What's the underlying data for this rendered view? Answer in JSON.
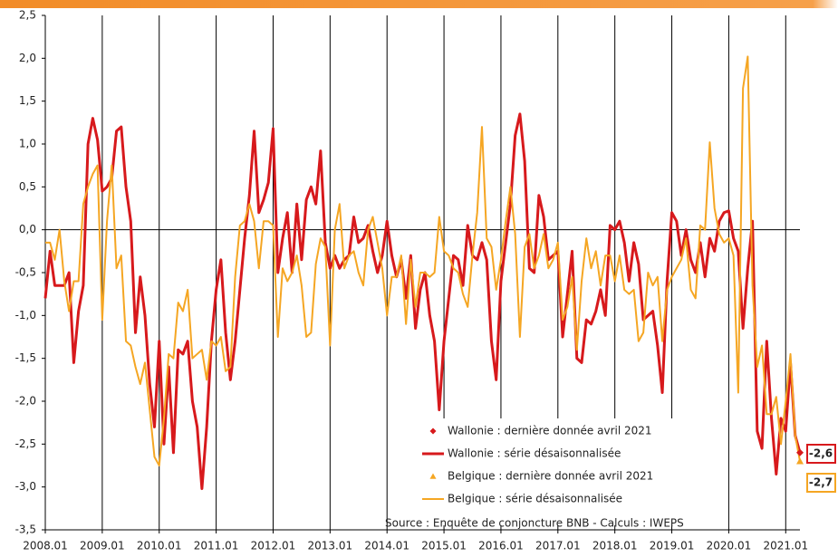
{
  "chart_data": {
    "type": "line",
    "source": "Source : Enquête de conjoncture BNB - Calculs : IWEPS",
    "categories": [
      "2008.01",
      null,
      null,
      null,
      null,
      null,
      null,
      null,
      null,
      null,
      null,
      null,
      "2009.01",
      null,
      null,
      null,
      null,
      null,
      null,
      null,
      null,
      null,
      null,
      null,
      "2010.01",
      null,
      null,
      null,
      null,
      null,
      null,
      null,
      null,
      null,
      null,
      null,
      "2011.01",
      null,
      null,
      null,
      null,
      null,
      null,
      null,
      null,
      null,
      null,
      null,
      "2012.01",
      null,
      null,
      null,
      null,
      null,
      null,
      null,
      null,
      null,
      null,
      null,
      "2013.01",
      null,
      null,
      null,
      null,
      null,
      null,
      null,
      null,
      null,
      null,
      null,
      "2014.01",
      null,
      null,
      null,
      null,
      null,
      null,
      null,
      null,
      null,
      null,
      null,
      "2015.01",
      null,
      null,
      null,
      null,
      null,
      null,
      null,
      null,
      null,
      null,
      null,
      "2016.01",
      null,
      null,
      null,
      null,
      null,
      null,
      null,
      null,
      null,
      null,
      null,
      "2017.01",
      null,
      null,
      null,
      null,
      null,
      null,
      null,
      null,
      null,
      null,
      null,
      "2018.01",
      null,
      null,
      null,
      null,
      null,
      null,
      null,
      null,
      null,
      null,
      null,
      "2019.01",
      null,
      null,
      null,
      null,
      null,
      null,
      null,
      null,
      null,
      null,
      null,
      "2020.01",
      null,
      null,
      null,
      null,
      null,
      null,
      null,
      null,
      null,
      null,
      null,
      "2021.01",
      null,
      null,
      null
    ],
    "series": [
      {
        "name": "Wallonie : dernière donnée avril 2021",
        "color": "#d7191c",
        "marker": "diamond",
        "values": [
          null,
          null,
          null,
          null,
          null,
          null,
          null,
          null,
          null,
          null,
          null,
          null,
          null,
          null,
          null,
          null,
          null,
          null,
          null,
          null,
          null,
          null,
          null,
          null,
          null,
          null,
          null,
          null,
          null,
          null,
          null,
          null,
          null,
          null,
          null,
          null,
          null,
          null,
          null,
          null,
          null,
          null,
          null,
          null,
          null,
          null,
          null,
          null,
          null,
          null,
          null,
          null,
          null,
          null,
          null,
          null,
          null,
          null,
          null,
          null,
          null,
          null,
          null,
          null,
          null,
          null,
          null,
          null,
          null,
          null,
          null,
          null,
          null,
          null,
          null,
          null,
          null,
          null,
          null,
          null,
          null,
          null,
          null,
          null,
          null,
          null,
          null,
          null,
          null,
          null,
          null,
          null,
          null,
          null,
          null,
          null,
          null,
          null,
          null,
          null,
          null,
          null,
          null,
          null,
          null,
          null,
          null,
          null,
          null,
          null,
          null,
          null,
          null,
          null,
          null,
          null,
          null,
          null,
          null,
          null,
          null,
          null,
          null,
          null,
          null,
          null,
          null,
          null,
          null,
          null,
          null,
          null,
          null,
          null,
          null,
          null,
          null,
          null,
          null,
          null,
          null,
          null,
          null,
          null,
          null,
          null,
          null,
          null,
          null,
          null,
          null,
          null,
          null,
          null,
          null,
          null,
          null,
          null,
          null,
          -2.6
        ],
        "value_labels": [
          null,
          null,
          null,
          null,
          null,
          null,
          null,
          null,
          null,
          null,
          null,
          null,
          null,
          null,
          null,
          null,
          null,
          null,
          null,
          null,
          null,
          null,
          null,
          null,
          null,
          null,
          null,
          null,
          null,
          null,
          null,
          null,
          null,
          null,
          null,
          null,
          null,
          null,
          null,
          null,
          null,
          null,
          null,
          null,
          null,
          null,
          null,
          null,
          null,
          null,
          null,
          null,
          null,
          null,
          null,
          null,
          null,
          null,
          null,
          null,
          null,
          null,
          null,
          null,
          null,
          null,
          null,
          null,
          null,
          null,
          null,
          null,
          null,
          null,
          null,
          null,
          null,
          null,
          null,
          null,
          null,
          null,
          null,
          null,
          null,
          null,
          null,
          null,
          null,
          null,
          null,
          null,
          null,
          null,
          null,
          null,
          null,
          null,
          null,
          null,
          null,
          null,
          null,
          null,
          null,
          null,
          null,
          null,
          null,
          null,
          null,
          null,
          null,
          null,
          null,
          null,
          null,
          null,
          null,
          null,
          null,
          null,
          null,
          null,
          null,
          null,
          null,
          null,
          null,
          null,
          null,
          null,
          null,
          null,
          null,
          null,
          null,
          null,
          null,
          null,
          null,
          null,
          null,
          null,
          null,
          null,
          null,
          null,
          null,
          null,
          null,
          null,
          null,
          null,
          null,
          null,
          null,
          null,
          null,
          "-2,6"
        ]
      },
      {
        "name": "Wallonie : série désaisonnalisée",
        "color": "#d7191c",
        "values": [
          -0.8,
          -0.25,
          -0.65,
          -0.65,
          -0.65,
          -0.5,
          -1.55,
          -0.95,
          -0.65,
          1.0,
          1.3,
          1.05,
          0.45,
          0.5,
          0.6,
          1.15,
          1.2,
          0.5,
          0.1,
          -1.2,
          -0.55,
          -1.0,
          -1.8,
          -2.3,
          -1.3,
          -2.5,
          -1.6,
          -2.6,
          -1.4,
          -1.45,
          -1.3,
          -2.0,
          -2.3,
          -3.02,
          -2.3,
          -1.3,
          -0.7,
          -0.35,
          -1.2,
          -1.75,
          -1.3,
          -0.7,
          -0.1,
          0.4,
          1.15,
          0.2,
          0.35,
          0.55,
          1.18,
          -0.5,
          -0.1,
          0.2,
          -0.5,
          0.3,
          -0.35,
          0.35,
          0.5,
          0.3,
          0.92,
          -0.15,
          -0.45,
          -0.3,
          -0.45,
          -0.35,
          -0.3,
          0.15,
          -0.15,
          -0.1,
          0.05,
          -0.25,
          -0.5,
          -0.3,
          0.1,
          -0.3,
          -0.55,
          -0.35,
          -0.8,
          -0.3,
          -1.15,
          -0.7,
          -0.5,
          -1.0,
          -1.3,
          -2.1,
          -1.3,
          -0.8,
          -0.3,
          -0.35,
          -0.65,
          0.05,
          -0.3,
          -0.35,
          -0.15,
          -0.35,
          -1.3,
          -1.75,
          -0.6,
          -0.15,
          0.3,
          1.1,
          1.35,
          0.8,
          -0.45,
          -0.5,
          0.4,
          0.15,
          -0.35,
          -0.3,
          -0.25,
          -1.25,
          -0.75,
          -0.25,
          -1.5,
          -1.55,
          -1.05,
          -1.1,
          -0.95,
          -0.7,
          -1.0,
          0.05,
          0.0,
          0.1,
          -0.15,
          -0.6,
          -0.15,
          -0.4,
          -1.05,
          -1.0,
          -0.95,
          -1.35,
          -1.9,
          -0.6,
          0.2,
          0.1,
          -0.3,
          0.0,
          -0.35,
          -0.5,
          -0.15,
          -0.55,
          -0.1,
          -0.25,
          0.1,
          0.2,
          0.22,
          -0.1,
          -0.25,
          -1.15,
          -0.45,
          0.1,
          -2.35,
          -2.55,
          -1.3,
          -2.2,
          -2.85,
          -2.2,
          -2.35,
          -1.55,
          -2.4,
          -2.6
        ]
      },
      {
        "name": "Belgique : dernière donnée avril 2021",
        "color": "#f5a623",
        "marker": "triangle",
        "values": [
          null,
          null,
          null,
          null,
          null,
          null,
          null,
          null,
          null,
          null,
          null,
          null,
          null,
          null,
          null,
          null,
          null,
          null,
          null,
          null,
          null,
          null,
          null,
          null,
          null,
          null,
          null,
          null,
          null,
          null,
          null,
          null,
          null,
          null,
          null,
          null,
          null,
          null,
          null,
          null,
          null,
          null,
          null,
          null,
          null,
          null,
          null,
          null,
          null,
          null,
          null,
          null,
          null,
          null,
          null,
          null,
          null,
          null,
          null,
          null,
          null,
          null,
          null,
          null,
          null,
          null,
          null,
          null,
          null,
          null,
          null,
          null,
          null,
          null,
          null,
          null,
          null,
          null,
          null,
          null,
          null,
          null,
          null,
          null,
          null,
          null,
          null,
          null,
          null,
          null,
          null,
          null,
          null,
          null,
          null,
          null,
          null,
          null,
          null,
          null,
          null,
          null,
          null,
          null,
          null,
          null,
          null,
          null,
          null,
          null,
          null,
          null,
          null,
          null,
          null,
          null,
          null,
          null,
          null,
          null,
          null,
          null,
          null,
          null,
          null,
          null,
          null,
          null,
          null,
          null,
          null,
          null,
          null,
          null,
          null,
          null,
          null,
          null,
          null,
          null,
          null,
          null,
          null,
          null,
          null,
          null,
          null,
          null,
          null,
          null,
          null,
          null,
          null,
          null,
          null,
          null,
          null,
          null,
          null,
          -2.7
        ],
        "value_labels": [
          null,
          null,
          null,
          null,
          null,
          null,
          null,
          null,
          null,
          null,
          null,
          null,
          null,
          null,
          null,
          null,
          null,
          null,
          null,
          null,
          null,
          null,
          null,
          null,
          null,
          null,
          null,
          null,
          null,
          null,
          null,
          null,
          null,
          null,
          null,
          null,
          null,
          null,
          null,
          null,
          null,
          null,
          null,
          null,
          null,
          null,
          null,
          null,
          null,
          null,
          null,
          null,
          null,
          null,
          null,
          null,
          null,
          null,
          null,
          null,
          null,
          null,
          null,
          null,
          null,
          null,
          null,
          null,
          null,
          null,
          null,
          null,
          null,
          null,
          null,
          null,
          null,
          null,
          null,
          null,
          null,
          null,
          null,
          null,
          null,
          null,
          null,
          null,
          null,
          null,
          null,
          null,
          null,
          null,
          null,
          null,
          null,
          null,
          null,
          null,
          null,
          null,
          null,
          null,
          null,
          null,
          null,
          null,
          null,
          null,
          null,
          null,
          null,
          null,
          null,
          null,
          null,
          null,
          null,
          null,
          null,
          null,
          null,
          null,
          null,
          null,
          null,
          null,
          null,
          null,
          null,
          null,
          null,
          null,
          null,
          null,
          null,
          null,
          null,
          null,
          null,
          null,
          null,
          null,
          null,
          null,
          null,
          null,
          null,
          null,
          null,
          null,
          null,
          null,
          null,
          null,
          null,
          null,
          null,
          "-2,7"
        ]
      },
      {
        "name": "Belgique : série désaisonnalisée",
        "color": "#f5a623",
        "values": [
          -0.15,
          -0.15,
          -0.35,
          0.0,
          -0.6,
          -0.95,
          -0.6,
          -0.6,
          0.3,
          0.5,
          0.65,
          0.75,
          -1.05,
          0.1,
          0.75,
          -0.45,
          -0.3,
          -1.3,
          -1.35,
          -1.6,
          -1.8,
          -1.55,
          -2.1,
          -2.65,
          -2.75,
          -2.2,
          -1.45,
          -1.5,
          -0.85,
          -0.95,
          -0.7,
          -1.5,
          -1.45,
          -1.4,
          -1.75,
          -1.3,
          -1.35,
          -1.25,
          -1.65,
          -1.6,
          -0.55,
          0.05,
          0.1,
          0.3,
          0.1,
          -0.45,
          0.1,
          0.1,
          0.05,
          -1.25,
          -0.45,
          -0.6,
          -0.5,
          -0.3,
          -0.65,
          -1.25,
          -1.2,
          -0.4,
          -0.1,
          -0.2,
          -1.35,
          0.0,
          0.3,
          -0.45,
          -0.3,
          -0.25,
          -0.5,
          -0.65,
          0.0,
          0.15,
          -0.15,
          -0.45,
          -1.0,
          -0.55,
          -0.55,
          -0.3,
          -1.1,
          -0.35,
          -0.9,
          -0.5,
          -0.5,
          -0.55,
          -0.5,
          0.15,
          -0.25,
          -0.3,
          -0.45,
          -0.5,
          -0.75,
          -0.9,
          -0.3,
          0.2,
          1.2,
          -0.1,
          -0.2,
          -0.7,
          -0.35,
          0.1,
          0.5,
          -0.05,
          -1.25,
          -0.2,
          -0.05,
          -0.45,
          -0.3,
          -0.05,
          -0.45,
          -0.35,
          -0.15,
          -1.05,
          -0.9,
          -0.55,
          -1.4,
          -0.6,
          -0.1,
          -0.45,
          -0.25,
          -0.65,
          -0.3,
          -0.3,
          -0.6,
          -0.3,
          -0.7,
          -0.75,
          -0.7,
          -1.3,
          -1.2,
          -0.5,
          -0.65,
          -0.55,
          -1.3,
          -0.7,
          -0.55,
          -0.45,
          -0.35,
          -0.1,
          -0.7,
          -0.8,
          0.05,
          0.0,
          1.02,
          0.25,
          -0.05,
          -0.15,
          -0.1,
          -0.3,
          -1.9,
          1.65,
          2.02,
          -0.65,
          -1.6,
          -1.35,
          -2.15,
          -2.15,
          -1.95,
          -2.5,
          -2.0,
          -1.45,
          -2.4,
          -2.7
        ]
      }
    ],
    "ylim": [
      -3.5,
      2.5
    ],
    "yticks": [
      {
        "value": -3.5,
        "label": "-3,5"
      },
      {
        "value": -3,
        "label": "-3,0"
      },
      {
        "value": -2.5,
        "label": "-2,5"
      },
      {
        "value": -2,
        "label": "-2,0"
      },
      {
        "value": -1.5,
        "label": "-1,5"
      },
      {
        "value": -1,
        "label": "-1,0"
      },
      {
        "value": -0.5,
        "label": "-0,5"
      },
      {
        "value": 0,
        "label": "0,0"
      },
      {
        "value": 0.5,
        "label": "0,5"
      },
      {
        "value": 1,
        "label": "1,0"
      },
      {
        "value": 1.5,
        "label": "1,5"
      },
      {
        "value": 2,
        "label": "2,0"
      },
      {
        "value": 2.5,
        "label": "2,5"
      }
    ],
    "grid": true
  }
}
